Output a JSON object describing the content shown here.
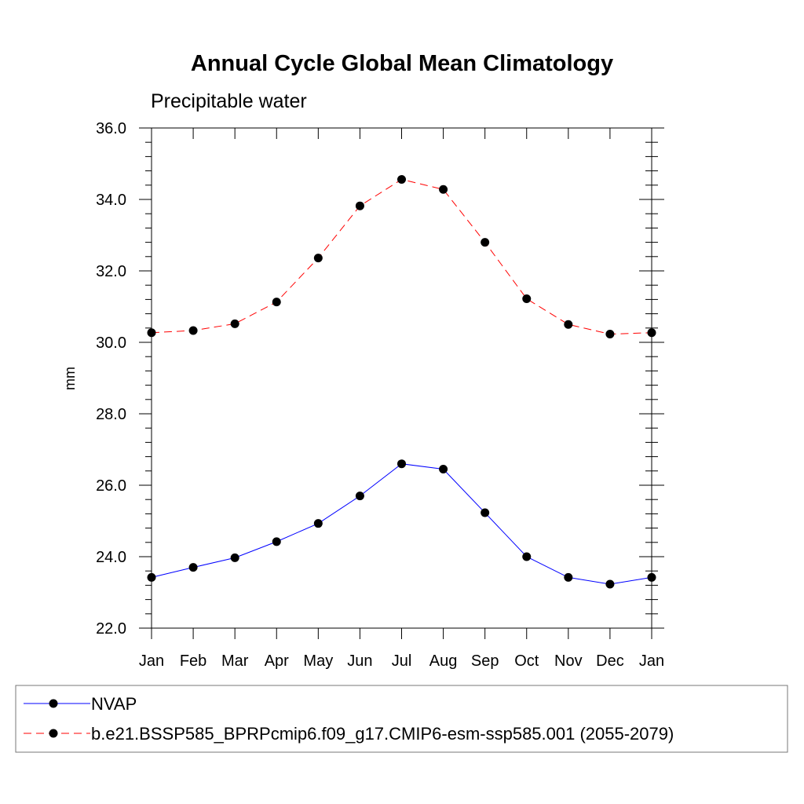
{
  "chart_data": {
    "type": "line",
    "title": "Annual Cycle Global Mean Climatology",
    "subtitle": "Precipitable water",
    "xlabel": "",
    "ylabel": "mm",
    "categories": [
      "Jan",
      "Feb",
      "Mar",
      "Apr",
      "May",
      "Jun",
      "Jul",
      "Aug",
      "Sep",
      "Oct",
      "Nov",
      "Dec",
      "Jan"
    ],
    "ylim": [
      22.0,
      36.0
    ],
    "y_ticks": [
      "22.0",
      "24.0",
      "26.0",
      "28.0",
      "30.0",
      "32.0",
      "34.0",
      "36.0"
    ],
    "grid": false,
    "legend_position": "bottom",
    "series": [
      {
        "name": "NVAP",
        "color": "#0000ff",
        "dash": "solid",
        "values": [
          23.42,
          23.7,
          23.97,
          24.42,
          24.93,
          25.7,
          26.6,
          26.45,
          25.23,
          24.0,
          23.42,
          23.23,
          23.42
        ]
      },
      {
        "name": "b.e21.BSSP585_BPRPcmip6.f09_g17.CMIP6-esm-ssp585.001 (2055-2079)",
        "color": "#ff0000",
        "dash": "dashed",
        "values": [
          30.27,
          30.33,
          30.52,
          31.13,
          32.36,
          33.82,
          34.56,
          34.28,
          32.8,
          31.22,
          30.5,
          30.23,
          30.27
        ]
      }
    ]
  }
}
